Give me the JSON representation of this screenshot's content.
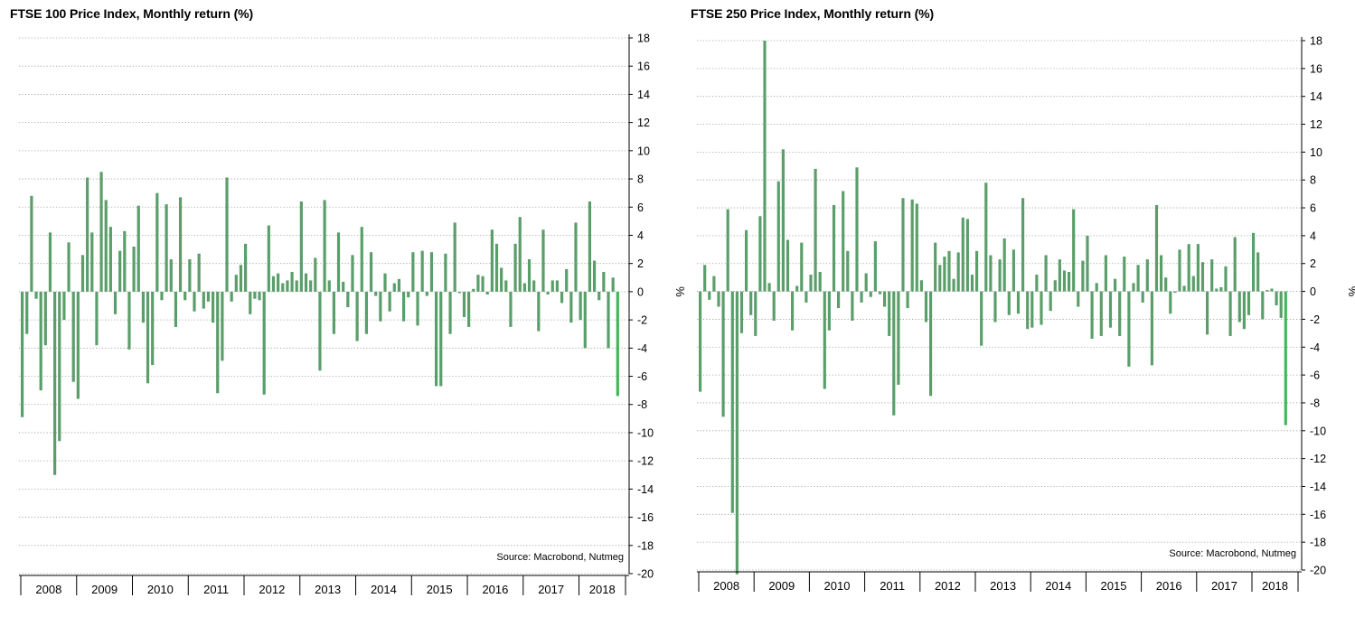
{
  "chart_data": [
    {
      "type": "bar",
      "title": "FTSE 100 Price Index, Monthly return (%)",
      "ylabel": "%",
      "source": "Source: Macrobond, Nutmeg",
      "ylim": [
        -20,
        18
      ],
      "yticks": [
        18,
        16,
        14,
        12,
        10,
        8,
        6,
        4,
        2,
        0,
        -2,
        -4,
        -6,
        -8,
        -10,
        -12,
        -14,
        -16,
        -18,
        -20
      ],
      "grid": true,
      "legend": "none",
      "bar_color": "#5a9e6a",
      "highlight_color": "#3fb85a",
      "x_start": "2008-01",
      "x_end": "2018-10",
      "year_labels": [
        "2008",
        "2009",
        "2010",
        "2011",
        "2012",
        "2013",
        "2014",
        "2015",
        "2016",
        "2017",
        "2018"
      ],
      "series": [
        {
          "values": [
            -8.9,
            -3.0,
            6.8,
            -0.5,
            -7.0,
            -3.8,
            4.2,
            -13.0,
            -10.6,
            -2.0,
            3.5,
            -6.4,
            -7.6,
            2.6,
            8.1,
            4.2,
            -3.8,
            8.5,
            6.5,
            4.6,
            -1.6,
            2.9,
            4.3,
            -4.1,
            3.2,
            6.1,
            -2.2,
            -6.5,
            -5.2,
            7.0,
            -0.6,
            6.2,
            2.3,
            -2.5,
            6.7,
            -0.6,
            2.3,
            -1.4,
            2.7,
            -1.2,
            -0.7,
            -2.2,
            -7.2,
            -4.9,
            8.1,
            -0.7,
            1.2,
            1.9,
            3.4,
            -1.6,
            -0.5,
            -0.6,
            -7.3,
            4.7,
            1.1,
            1.3,
            0.6,
            0.8,
            1.4,
            0.8,
            6.4,
            1.3,
            0.8,
            2.4,
            -5.6,
            6.5,
            0.8,
            -3.0,
            4.2,
            0.7,
            -1.1,
            2.6,
            -3.5,
            4.6,
            -3.0,
            2.8,
            -0.3,
            -2.1,
            1.3,
            -1.4,
            0.6,
            0.9,
            -2.1,
            -0.4,
            2.8,
            -2.4,
            2.9,
            -0.3,
            2.8,
            -6.7,
            -6.7,
            2.7,
            -3.0,
            4.9,
            -0.1,
            -1.8,
            -2.5,
            0.2,
            1.2,
            1.1,
            -0.2,
            4.4,
            3.4,
            1.7,
            0.8,
            -2.5,
            3.4,
            5.3,
            0.6,
            2.3,
            0.8,
            -2.8,
            4.4,
            -0.2,
            0.8,
            0.8,
            -0.8,
            1.6,
            -2.2,
            4.9,
            -2.0,
            -4.0,
            6.4,
            2.2,
            -0.6,
            1.4,
            -4.0,
            1.0,
            -7.4
          ]
        }
      ]
    },
    {
      "type": "bar",
      "title": "FTSE 250 Price Index, Monthly return (%)",
      "ylabel": "%",
      "source": "Source: Macrobond, Nutmeg",
      "ylim": [
        -20,
        18
      ],
      "yticks": [
        18,
        16,
        14,
        12,
        10,
        8,
        6,
        4,
        2,
        0,
        -2,
        -4,
        -6,
        -8,
        -10,
        -12,
        -14,
        -16,
        -18,
        -20
      ],
      "grid": true,
      "legend": "none",
      "bar_color": "#5a9e6a",
      "highlight_color": "#3fb85a",
      "x_start": "2008-01",
      "x_end": "2018-10",
      "year_labels": [
        "2008",
        "2009",
        "2010",
        "2011",
        "2012",
        "2013",
        "2014",
        "2015",
        "2016",
        "2017",
        "2018"
      ],
      "series": [
        {
          "values": [
            -7.2,
            1.9,
            -0.6,
            1.1,
            -1.1,
            -9.0,
            5.9,
            -15.9,
            -20.3,
            -3.0,
            4.4,
            -1.7,
            -3.2,
            5.4,
            18.0,
            0.6,
            -2.1,
            7.9,
            10.2,
            3.7,
            -2.8,
            0.4,
            3.5,
            -0.8,
            1.2,
            8.8,
            1.4,
            -7.0,
            -2.8,
            6.2,
            -1.2,
            7.2,
            2.9,
            -2.1,
            8.9,
            -0.8,
            1.3,
            -0.4,
            3.6,
            -0.2,
            -1.1,
            -3.2,
            -8.9,
            -6.7,
            6.7,
            -1.2,
            6.6,
            6.3,
            0.8,
            -2.2,
            -7.5,
            3.5,
            1.9,
            2.5,
            2.9,
            0.9,
            2.8,
            5.3,
            5.2,
            1.2,
            2.9,
            -3.9,
            7.8,
            2.6,
            -2.2,
            2.3,
            3.8,
            -1.7,
            3.0,
            -1.6,
            6.7,
            -2.7,
            -2.6,
            1.2,
            -2.4,
            2.6,
            -1.4,
            0.8,
            2.3,
            1.5,
            1.4,
            5.9,
            -1.1,
            2.2,
            4.0,
            -3.4,
            0.6,
            -3.2,
            2.6,
            -2.6,
            0.9,
            -3.2,
            2.5,
            -5.4,
            0.6,
            1.9,
            -0.8,
            2.3,
            -5.3,
            6.2,
            2.6,
            1.0,
            -1.6,
            -0.1,
            3.0,
            0.4,
            3.4,
            1.1,
            3.4,
            2.1,
            -3.1,
            2.3,
            0.2,
            0.3,
            1.8,
            -3.2,
            3.9,
            -2.2,
            -2.7,
            -1.7,
            4.2,
            2.8,
            -2.0,
            0.1,
            0.2,
            -1.0,
            -1.9,
            -9.6
          ]
        }
      ]
    }
  ]
}
